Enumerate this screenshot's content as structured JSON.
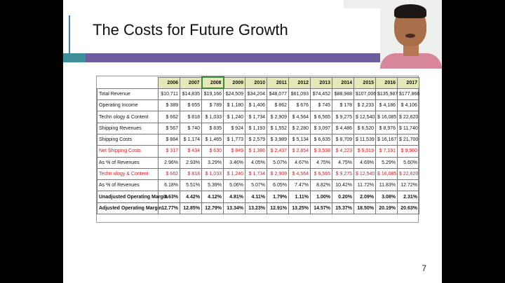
{
  "slide": {
    "title": "The Costs for Future Growth",
    "page_number": "7"
  },
  "table": {
    "years": [
      "2006",
      "2007",
      "2008",
      "2009",
      "2010",
      "2011",
      "2012",
      "2013",
      "2014",
      "2015",
      "2016",
      "2017"
    ],
    "rows": [
      {
        "label": "Total Revenue",
        "style": "normal",
        "values": [
          "$10,711",
          "$14,835",
          "$19,166",
          "$24,509",
          "$34,204",
          "$48,077",
          "$61,093",
          "$74,452",
          "$88,988",
          "$107,006",
          "$135,987",
          "$177,866"
        ]
      },
      {
        "label": "Operating Income",
        "style": "normal",
        "values": [
          "$ 389",
          "$ 655",
          "$ 789",
          "$ 1,180",
          "$ 1,406",
          "$ 862",
          "$ 676",
          "$ 745",
          "$ 178",
          "$ 2,233",
          "$ 4,186",
          "$ 4,106"
        ]
      },
      {
        "label": "Techn ology & Content",
        "style": "normal",
        "values": [
          "$ 662",
          "$ 818",
          "$ 1,033",
          "$ 1,240",
          "$ 1,734",
          "$ 2,909",
          "$ 4,564",
          "$ 6,565",
          "$ 9,275",
          "$ 12,540",
          "$ 16,085",
          "$ 22,620"
        ]
      },
      {
        "label": "Shipping Revenues",
        "style": "normal",
        "values": [
          "$ 567",
          "$ 740",
          "$ 835",
          "$ 924",
          "$ 1,193",
          "$ 1,552",
          "$ 2,280",
          "$ 3,097",
          "$ 4,486",
          "$ 6,520",
          "$ 8,976",
          "$ 11,740"
        ]
      },
      {
        "label": "Shipping Costs",
        "style": "normal",
        "values": [
          "$ 884",
          "$ 1,174",
          "$ 1,465",
          "$ 1,773",
          "$ 2,579",
          "$ 3,989",
          "$ 5,134",
          "$ 6,635",
          "$ 8,709",
          "$ 11,539",
          "$ 16,167",
          "$ 21,700"
        ]
      },
      {
        "label": "Net Shipping Costs",
        "style": "red",
        "values": [
          "$ 317",
          "$ 434",
          "$ 630",
          "$ 849",
          "$ 1,386",
          "$ 2,437",
          "$ 2,854",
          "$ 3,538",
          "$ 4,223",
          "$ 5,019",
          "$ 7,191",
          "$ 9,960"
        ]
      },
      {
        "label": "As % of Revenues",
        "style": "normal",
        "values": [
          "2.96%",
          "2.93%",
          "3.29%",
          "3.46%",
          "4.05%",
          "5.07%",
          "4.67%",
          "4.75%",
          "4.75%",
          "4.69%",
          "5.29%",
          "5.60%"
        ]
      },
      {
        "label": "Techn ology & Content",
        "style": "red",
        "values": [
          "$ 662",
          "$ 818",
          "$ 1,033",
          "$ 1,240",
          "$ 1,734",
          "$ 2,909",
          "$ 4,564",
          "$ 6,565",
          "$ 9,275",
          "$ 12,540",
          "$ 16,085",
          "$ 22,620"
        ]
      },
      {
        "label": "As % of Revenues",
        "style": "normal",
        "values": [
          "6.18%",
          "5.51%",
          "5.39%",
          "5.06%",
          "5.07%",
          "6.05%",
          "7.47%",
          "8.82%",
          "10.42%",
          "11.72%",
          "11.83%",
          "12.72%"
        ]
      },
      {
        "label": "Unadjusted Operating Margin",
        "style": "bold",
        "values": [
          "3.63%",
          "4.42%",
          "4.12%",
          "4.81%",
          "4.11%",
          "1.79%",
          "1.11%",
          "1.00%",
          "0.20%",
          "2.09%",
          "3.08%",
          "2.31%"
        ]
      },
      {
        "label": "Adjusted Operating Margin",
        "style": "bold",
        "values": [
          "12.77%",
          "12.85%",
          "12.79%",
          "13.34%",
          "13.23%",
          "12.91%",
          "13.25%",
          "14.57%",
          "15.37%",
          "18.50%",
          "20.19%",
          "20.63%"
        ]
      }
    ]
  },
  "colors": {
    "header_fill": "#e6e8b8",
    "highlight_row_text": "#d42020",
    "accent_purple": "#6d5c9e",
    "accent_teal": "#3f8f9b",
    "rail_blue": "#3a7fb7"
  }
}
